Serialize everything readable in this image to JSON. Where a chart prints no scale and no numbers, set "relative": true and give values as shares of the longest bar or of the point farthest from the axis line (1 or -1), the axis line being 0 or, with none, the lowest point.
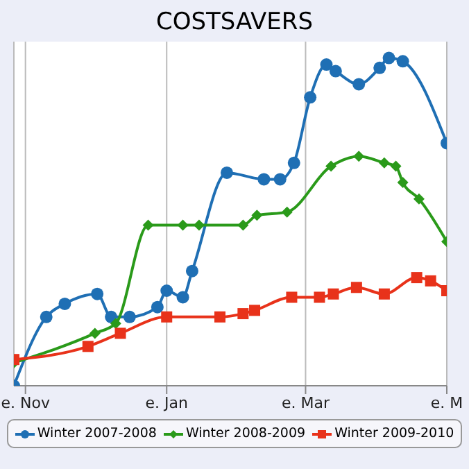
{
  "chart_data": {
    "type": "line",
    "title": "COSTSAVERS",
    "relative": true,
    "xlim": [
      "2007-10-27",
      "2008-05-01"
    ],
    "xticks": [
      {
        "value": "2007-11-01",
        "label": "e. Nov"
      },
      {
        "value": "2008-01-01",
        "label": "e. Jan"
      },
      {
        "value": "2008-03-01",
        "label": "e. Mar"
      },
      {
        "value": "2008-05-01",
        "label": "e. M"
      }
    ],
    "grid": "x",
    "legend": "bottom",
    "series": [
      {
        "name": "Winter 2007-2008",
        "color": "#1f6fb4",
        "marker": "circle",
        "x": [
          "2007-10-27",
          "2007-11-10",
          "2007-11-18",
          "2007-12-02",
          "2007-12-08",
          "2007-12-16",
          "2007-12-28",
          "2008-01-01",
          "2008-01-08",
          "2008-01-12",
          "2008-01-27",
          "2008-02-12",
          "2008-02-19",
          "2008-02-25",
          "2008-03-03",
          "2008-03-10",
          "2008-03-14",
          "2008-03-24",
          "2008-04-02",
          "2008-04-06",
          "2008-04-12",
          "2008-05-01"
        ],
        "values": [
          0,
          0.21,
          0.25,
          0.28,
          0.21,
          0.21,
          0.24,
          0.29,
          0.27,
          0.35,
          0.65,
          0.63,
          0.63,
          0.68,
          0.88,
          0.98,
          0.96,
          0.92,
          0.97,
          1.0,
          0.99,
          0.74
        ]
      },
      {
        "name": "Winter 2008-2009",
        "color": "#2a9a1a",
        "marker": "diamond",
        "x": [
          "2007-10-27",
          "2007-12-01",
          "2007-12-10",
          "2007-12-24",
          "2008-01-08",
          "2008-01-15",
          "2008-02-03",
          "2008-02-09",
          "2008-02-22",
          "2008-03-12",
          "2008-03-24",
          "2008-04-04",
          "2008-04-09",
          "2008-04-12",
          "2008-04-19",
          "2008-05-01"
        ],
        "values": [
          0.07,
          0.16,
          0.19,
          0.49,
          0.49,
          0.49,
          0.49,
          0.52,
          0.53,
          0.67,
          0.7,
          0.68,
          0.67,
          0.62,
          0.57,
          0.44
        ]
      },
      {
        "name": "Winter 2009-2010",
        "color": "#e8321a",
        "marker": "square",
        "x": [
          "2007-10-27",
          "2007-11-28",
          "2007-12-12",
          "2008-01-01",
          "2008-01-24",
          "2008-02-03",
          "2008-02-08",
          "2008-02-24",
          "2008-03-07",
          "2008-03-13",
          "2008-03-23",
          "2008-04-04",
          "2008-04-18",
          "2008-04-24",
          "2008-05-01"
        ],
        "values": [
          0.08,
          0.12,
          0.16,
          0.21,
          0.21,
          0.22,
          0.23,
          0.27,
          0.27,
          0.28,
          0.3,
          0.28,
          0.33,
          0.32,
          0.29
        ]
      }
    ]
  }
}
